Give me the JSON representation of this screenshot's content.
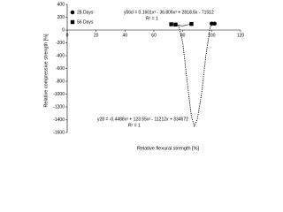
{
  "chart_data": {
    "type": "scatter",
    "xlabel": "Relative flexural strength [%]",
    "ylabel": "Relative compressive strength [%]",
    "xlim": [
      0,
      120
    ],
    "xticks": [
      0,
      20,
      40,
      60,
      80,
      100,
      120
    ],
    "ylim": [
      -1600,
      400
    ],
    "yticks": [
      400,
      200,
      0,
      -200,
      -400,
      -600,
      -800,
      -1000,
      -1200,
      -1400,
      -1600
    ],
    "legend": "top-left",
    "series": [
      {
        "name": "28 Days",
        "marker": "circle",
        "color": "#000000",
        "x": [
          100,
          102
        ],
        "values": [
          100,
          100
        ]
      },
      {
        "name": "56 Days",
        "marker": "square",
        "color": "#000000",
        "x": [
          72,
          75,
          86
        ],
        "values": [
          90,
          85,
          95
        ]
      }
    ],
    "trendlines": [
      {
        "dashed": true,
        "x": [
          77,
          80,
          83,
          86,
          88,
          90,
          93,
          96,
          99,
          101
        ],
        "values": [
          80,
          -200,
          -800,
          -1350,
          -1500,
          -1400,
          -1000,
          -400,
          50,
          100
        ]
      },
      {
        "dashed": false,
        "x": [
          72,
          76,
          80,
          86
        ],
        "values": [
          90,
          75,
          65,
          95
        ]
      }
    ],
    "annotations": [
      "y56d = 0.1601x³ - 36.806x² + 2818.5x - 71512",
      "R² = 1",
      "y28 = -0.4488x³ + 123.55x² - 11212x + 334672",
      "R² = 1"
    ]
  }
}
